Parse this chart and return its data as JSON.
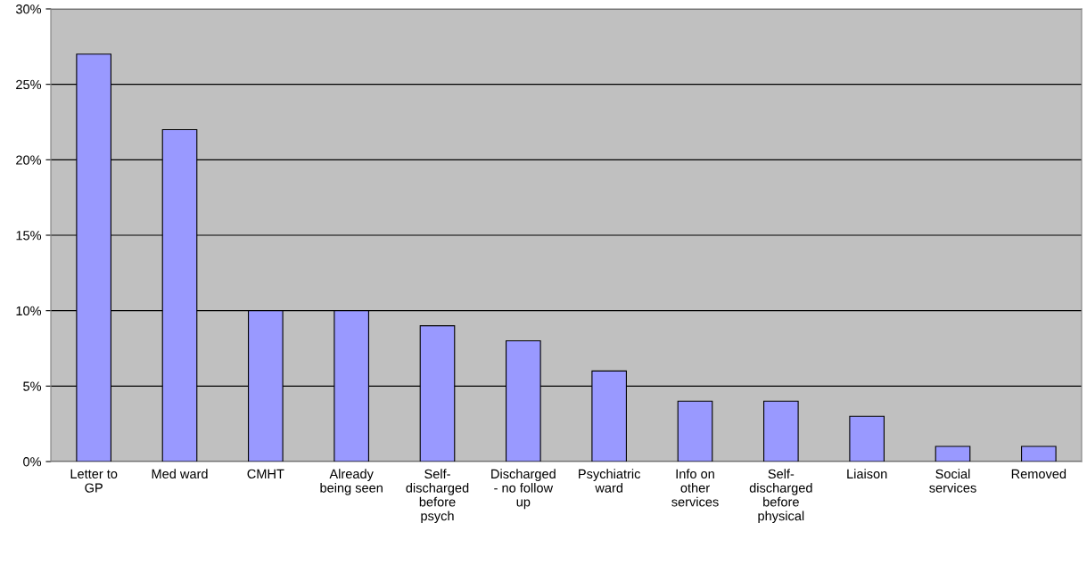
{
  "chart_data": {
    "type": "bar",
    "categories": [
      "Letter to\nGP",
      "Med ward",
      "CMHT",
      "Already\nbeing seen",
      "Self-\ndischarged\nbefore\npsych",
      "Discharged\n- no follow\nup",
      "Psychiatric\nward",
      "Info on\nother\nservices",
      "Self-\ndischarged\nbefore\nphysical",
      "Liaison",
      "Social\nservices",
      "Removed"
    ],
    "values": [
      27,
      22,
      10,
      10,
      9,
      8,
      6,
      4,
      4,
      3,
      1,
      1
    ],
    "color": "#9999ff",
    "ylim": [
      0,
      30
    ],
    "yticks": [
      {
        "value": 0,
        "label": "0%"
      },
      {
        "value": 5,
        "label": "5%"
      },
      {
        "value": 10,
        "label": "10%"
      },
      {
        "value": 15,
        "label": "15%"
      },
      {
        "value": 20,
        "label": "20%"
      },
      {
        "value": 25,
        "label": "25%"
      },
      {
        "value": 30,
        "label": "30%"
      }
    ],
    "grid": "y",
    "legend": false
  }
}
